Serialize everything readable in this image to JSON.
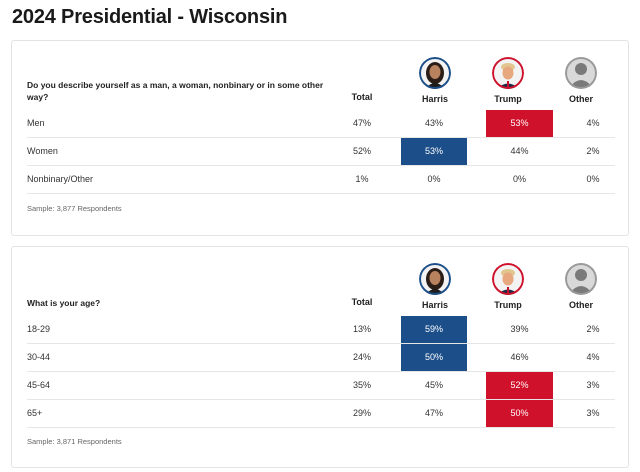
{
  "page_title": "2024 Presidential - Wisconsin",
  "candidates": [
    {
      "name": "Harris",
      "icon": "harris-portrait-icon"
    },
    {
      "name": "Trump",
      "icon": "trump-portrait-icon"
    },
    {
      "name": "Other",
      "icon": "user-placeholder-icon"
    }
  ],
  "total_label": "Total",
  "colors": {
    "harris_win": "#1c4f8a",
    "trump_win": "#d0112b"
  },
  "sections": [
    {
      "question": "Do you describe yourself as a man, a woman, nonbinary or in some other way?",
      "rows": [
        {
          "label": "Men",
          "total": "47%",
          "harris": "43%",
          "trump": "53%",
          "other": "4%",
          "winner": "trump"
        },
        {
          "label": "Women",
          "total": "52%",
          "harris": "53%",
          "trump": "44%",
          "other": "2%",
          "winner": "harris"
        },
        {
          "label": "Nonbinary/Other",
          "total": "1%",
          "harris": "0%",
          "trump": "0%",
          "other": "0%",
          "winner": ""
        }
      ],
      "sample": "Sample: 3,877 Respondents"
    },
    {
      "question": "What is your age?",
      "rows": [
        {
          "label": "18-29",
          "total": "13%",
          "harris": "59%",
          "trump": "39%",
          "other": "2%",
          "winner": "harris"
        },
        {
          "label": "30-44",
          "total": "24%",
          "harris": "50%",
          "trump": "46%",
          "other": "4%",
          "winner": "harris"
        },
        {
          "label": "45-64",
          "total": "35%",
          "harris": "45%",
          "trump": "52%",
          "other": "3%",
          "winner": "trump"
        },
        {
          "label": "65+",
          "total": "29%",
          "harris": "47%",
          "trump": "50%",
          "other": "3%",
          "winner": "trump"
        }
      ],
      "sample": "Sample: 3,871 Respondents"
    }
  ]
}
